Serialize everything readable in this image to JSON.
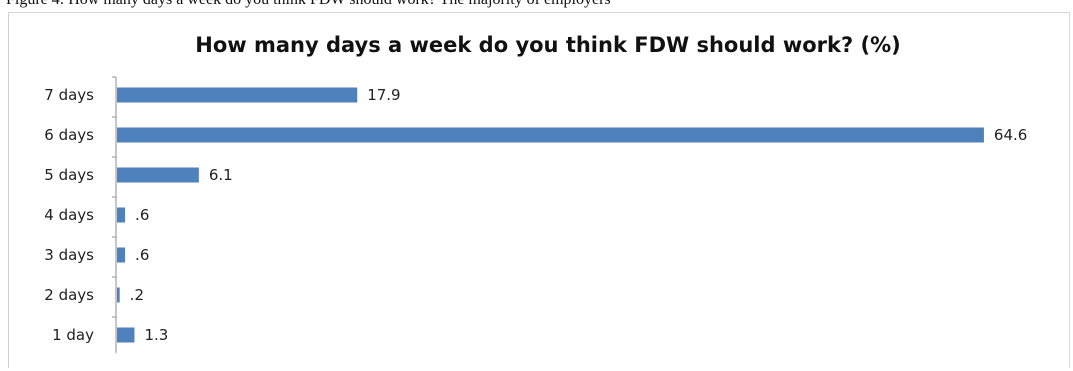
{
  "page": {
    "cropped_caption": "Figure 4: How many days a week do you think FDW should work? The majority of employers"
  },
  "chart_data": {
    "type": "bar",
    "orientation": "horizontal",
    "title": "How many days a week do you think FDW should work? (%)",
    "categories": [
      "7 days",
      "6 days",
      "5 days",
      "4 days",
      "3 days",
      "2 days",
      "1 day"
    ],
    "values": [
      17.9,
      64.6,
      6.1,
      0.6,
      0.6,
      0.2,
      1.3
    ],
    "value_labels": [
      "17.9",
      "64.6",
      "6.1",
      ".6",
      ".6",
      ".2",
      "1.3"
    ],
    "xlim": [
      0,
      65
    ],
    "grid": false,
    "legend": "none",
    "bar_color": "#4f81bd",
    "axis_color": "#8c8c8c"
  }
}
